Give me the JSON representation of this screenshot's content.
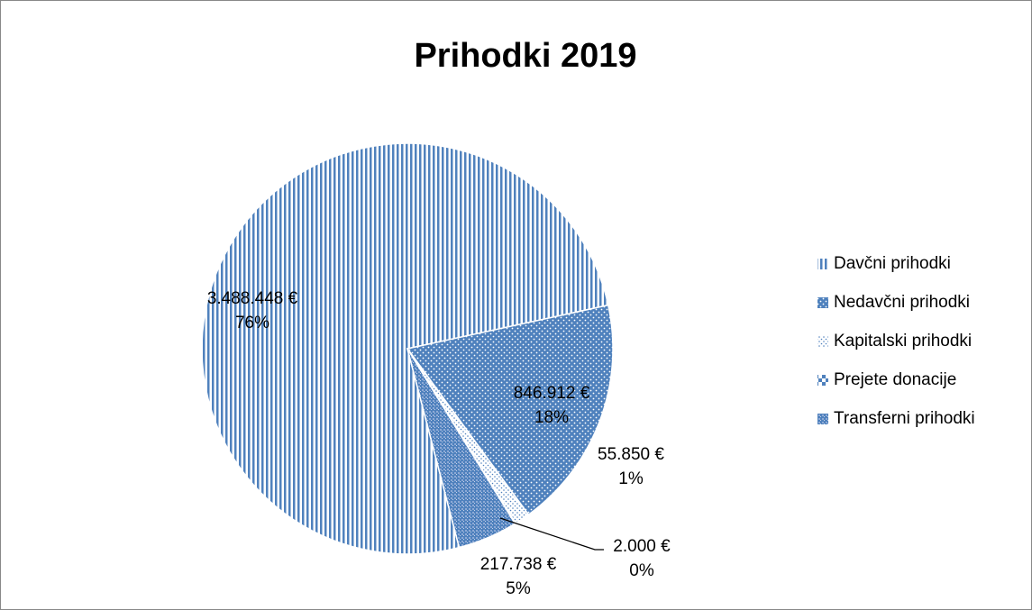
{
  "chart_data": {
    "type": "pie",
    "title": "Prihodki 2019",
    "categories": [
      "Davčni prihodki",
      "Nedavčni prihodki",
      "Kapitalski prihodki",
      "Prejete donacije",
      "Transferni prihodki"
    ],
    "values": [
      3488448,
      846912,
      55850,
      2000,
      217738
    ],
    "value_labels": [
      "3.488.448 €",
      "846.912 €",
      "55.850 €",
      "2.000 €",
      "217.738 €"
    ],
    "percent_labels": [
      "76%",
      "18%",
      "1%",
      "0%",
      "5%"
    ],
    "color": "#4f81bd",
    "legend": "right"
  }
}
